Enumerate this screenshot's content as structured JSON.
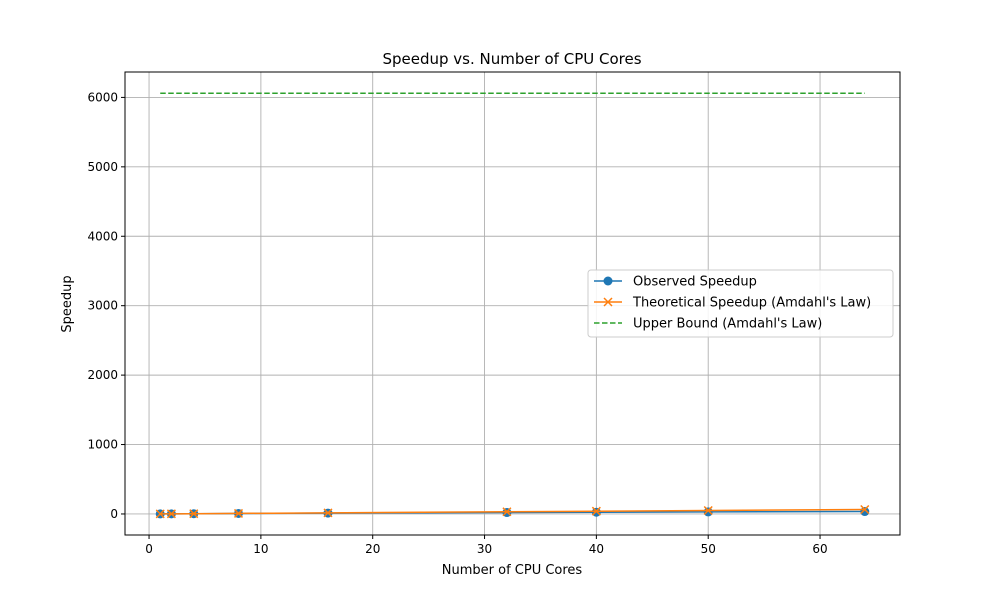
{
  "chart_data": {
    "type": "line",
    "title": "Speedup vs. Number of CPU Cores",
    "xlabel": "Number of CPU Cores",
    "ylabel": "Speedup",
    "xlim": [
      -2.15,
      67.15
    ],
    "ylim": [
      -303,
      6366
    ],
    "xticks": [
      0,
      10,
      20,
      30,
      40,
      50,
      60
    ],
    "yticks": [
      0,
      1000,
      2000,
      3000,
      4000,
      5000,
      6000
    ],
    "grid": true,
    "legend_position": "center-right",
    "x": [
      1,
      2,
      4,
      8,
      16,
      32,
      40,
      50,
      64
    ],
    "series": [
      {
        "name": "Observed Speedup",
        "color": "#1f77b4",
        "marker": "circle",
        "line": "solid",
        "values": [
          1,
          1.9,
          3.6,
          6.8,
          12.5,
          21,
          25,
          30,
          35
        ]
      },
      {
        "name": "Theoretical Speedup (Amdahl's Law)",
        "color": "#ff7f0e",
        "marker": "x",
        "line": "solid",
        "values": [
          1,
          2,
          4,
          8,
          16,
          32,
          40,
          50,
          64
        ]
      },
      {
        "name": "Upper Bound (Amdahl's Law)",
        "color": "#2ca02c",
        "marker": "none",
        "line": "dashed",
        "x": [
          1,
          64
        ],
        "values": [
          6060,
          6060
        ]
      }
    ]
  }
}
